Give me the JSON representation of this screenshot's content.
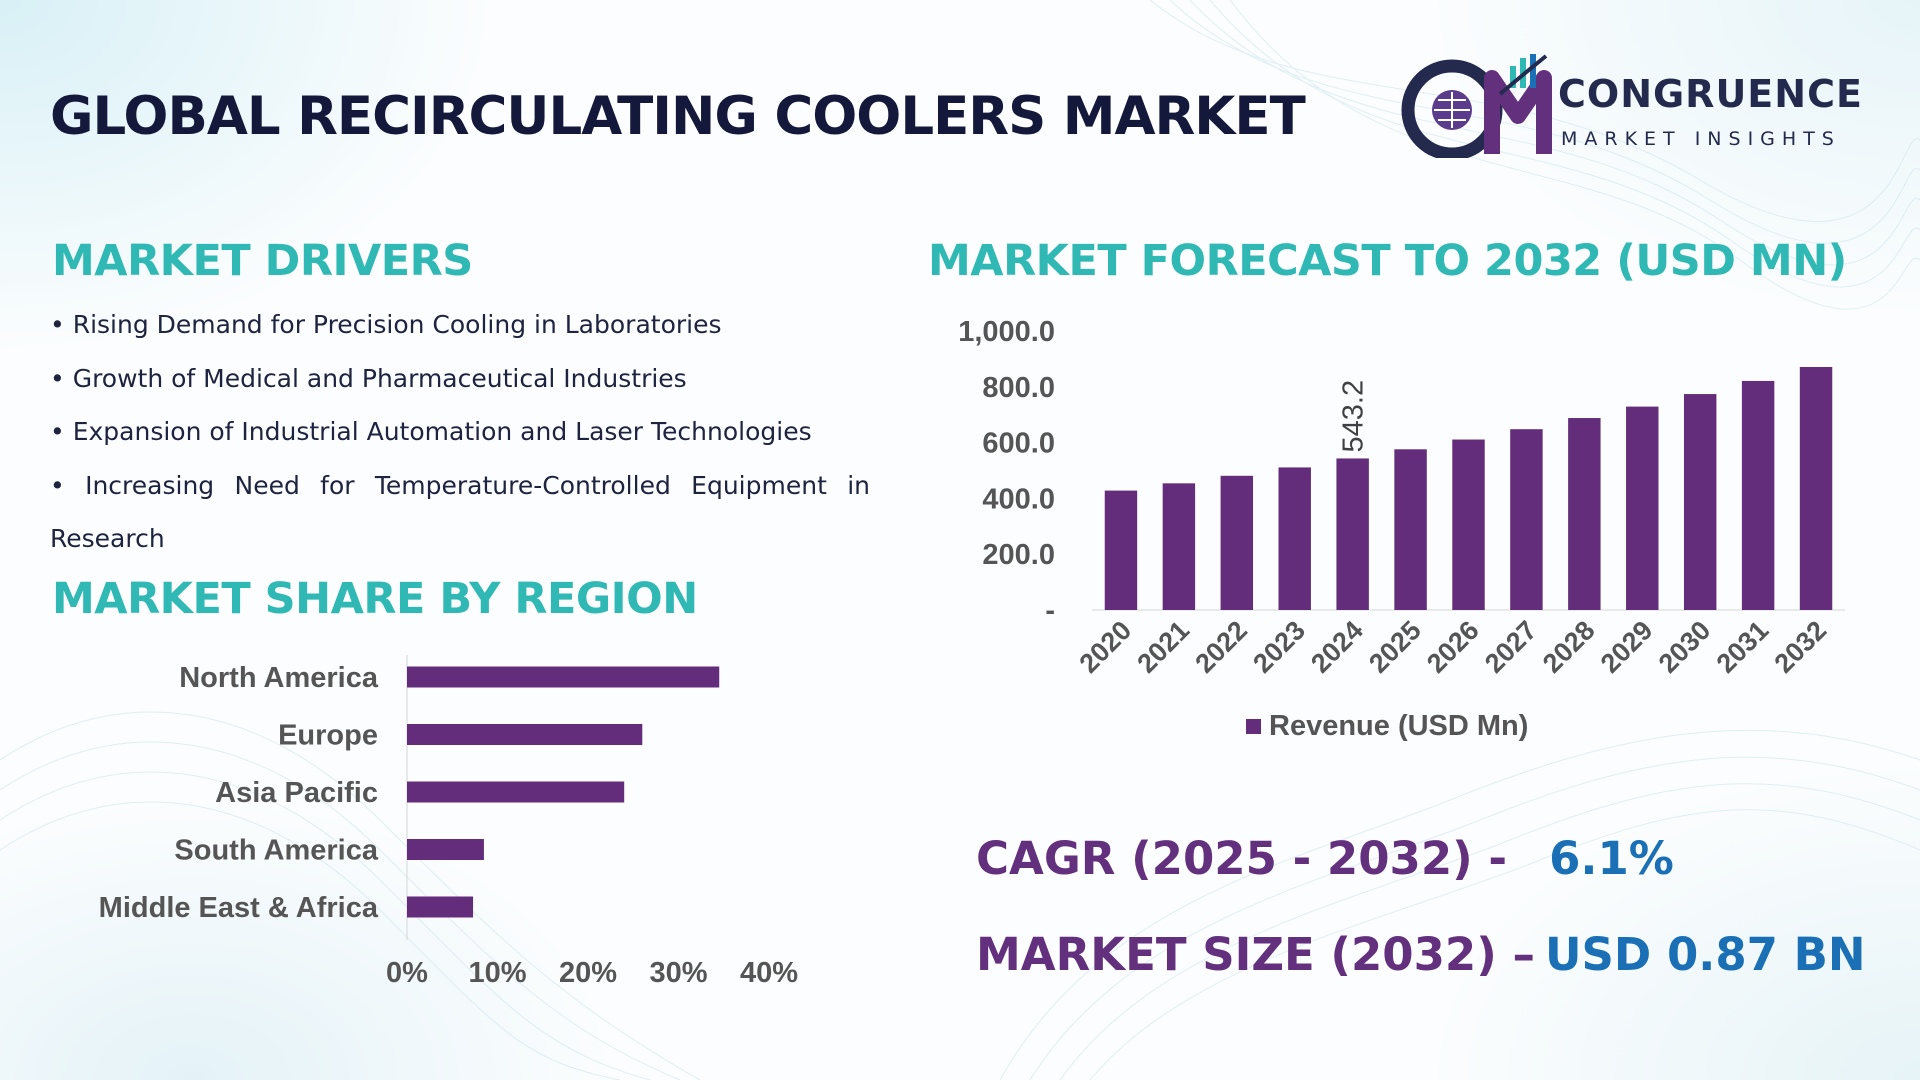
{
  "header": {
    "title": "GLOBAL RECIRCULATING COOLERS MARKET",
    "logo_initials": "CM",
    "logo_brand": "CONGRUENCE",
    "logo_sub": "MARKET INSIGHTS"
  },
  "drivers": {
    "heading": "MARKET DRIVERS",
    "items": [
      "• Rising Demand for Precision Cooling in Laboratories",
      "• Growth of Medical and Pharmaceutical Industries",
      "• Expansion of Industrial Automation and Laser Technologies",
      "• Increasing Need for Temperature-Controlled Equipment in",
      "Research"
    ]
  },
  "region": {
    "heading": "MARKET SHARE BY REGION"
  },
  "forecast": {
    "heading": "MARKET FORECAST TO 2032 (USD MN)"
  },
  "kpis": {
    "cagr_label": "CAGR (2025 - 2032) -",
    "cagr_value": "6.1%",
    "size_label": "MARKET SIZE (2032) –",
    "size_value": "USD 0.87 BN"
  },
  "colors": {
    "bar": "#632d7c",
    "heading": "#2fb8b4",
    "title": "#14183a",
    "kpi_label": "#63307e",
    "kpi_value": "#1a6fb5",
    "axis_text": "#555555"
  },
  "chart_data": [
    {
      "type": "bar",
      "orientation": "horizontal",
      "categories": [
        "North America",
        "Europe",
        "Asia Pacific",
        "South America",
        "Middle East & Africa"
      ],
      "values": [
        34.5,
        26,
        24,
        8.5,
        7.3
      ],
      "xlim": [
        0,
        40
      ],
      "tick_labels": [
        "0%",
        "10%",
        "20%",
        "30%",
        "40%"
      ],
      "grid": false,
      "legend": false
    },
    {
      "type": "bar",
      "categories": [
        "2020",
        "2021",
        "2022",
        "2023",
        "2024",
        "2025",
        "2026",
        "2027",
        "2028",
        "2029",
        "2030",
        "2031",
        "2032"
      ],
      "series": [
        {
          "name": "Revenue (USD Mn)",
          "values": [
            428,
            454,
            481,
            511,
            543.2,
            576,
            611,
            648,
            688,
            729,
            774,
            821,
            871
          ]
        }
      ],
      "ylim": [
        0,
        1000
      ],
      "tick_labels": [
        "-",
        "200.0",
        "400.0",
        "600.0",
        "800.0",
        "1,000.0"
      ],
      "data_labels": [
        {
          "category": "2024",
          "text": "543.2"
        }
      ],
      "legend": "bottom",
      "grid": false
    }
  ]
}
